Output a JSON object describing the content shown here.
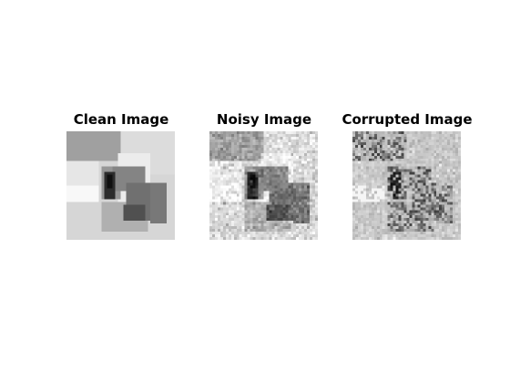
{
  "figure": {
    "panels": [
      {
        "id": "clean",
        "title": "Clean Image"
      },
      {
        "id": "noisy",
        "title": "Noisy Image"
      },
      {
        "id": "corrupted",
        "title": "Corrupted Image"
      }
    ]
  },
  "colors": {
    "background": "#ffffff",
    "title": "#000000"
  }
}
